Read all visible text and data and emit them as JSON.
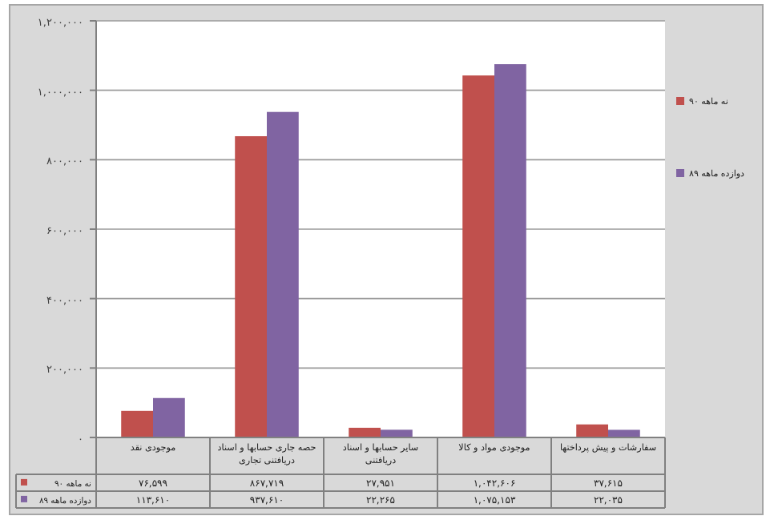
{
  "chart_data": {
    "type": "bar",
    "categories": [
      "موجودی نقد",
      "حصه جاری حسابها و اسناد دریافتنی تجاری",
      "سایر حسابها و اسناد دریافتنی",
      "موجودی مواد و کالا",
      "سفارشات و پیش پرداختها"
    ],
    "series": [
      {
        "name": "نه ماهه ۹۰",
        "color": "#c0504d",
        "values": [
          76599,
          867719,
          27951,
          1042606,
          37615
        ],
        "value_labels": [
          "۷۶,۵۹۹",
          "۸۶۷,۷۱۹",
          "۲۷,۹۵۱",
          "۱,۰۴۲,۶۰۶",
          "۳۷,۶۱۵"
        ]
      },
      {
        "name": "دوازده ماهه ۸۹",
        "color": "#8064a2",
        "values": [
          113610,
          937610,
          22265,
          1075153,
          22035
        ],
        "value_labels": [
          "۱۱۳,۶۱۰",
          "۹۳۷,۶۱۰",
          "۲۲,۲۶۵",
          "۱,۰۷۵,۱۵۳",
          "۲۲,۰۳۵"
        ]
      }
    ],
    "ylim": [
      0,
      1200000
    ],
    "yticks": [
      {
        "value": 0,
        "label": "۰"
      },
      {
        "value": 200000,
        "label": "۲۰۰,۰۰۰"
      },
      {
        "value": 400000,
        "label": "۴۰۰,۰۰۰"
      },
      {
        "value": 600000,
        "label": "۶۰۰,۰۰۰"
      },
      {
        "value": 800000,
        "label": "۸۰۰,۰۰۰"
      },
      {
        "value": 1000000,
        "label": "۱,۰۰۰,۰۰۰"
      },
      {
        "value": 1200000,
        "label": "۱,۲۰۰,۰۰۰"
      }
    ],
    "grid": "y",
    "legend": "right"
  }
}
